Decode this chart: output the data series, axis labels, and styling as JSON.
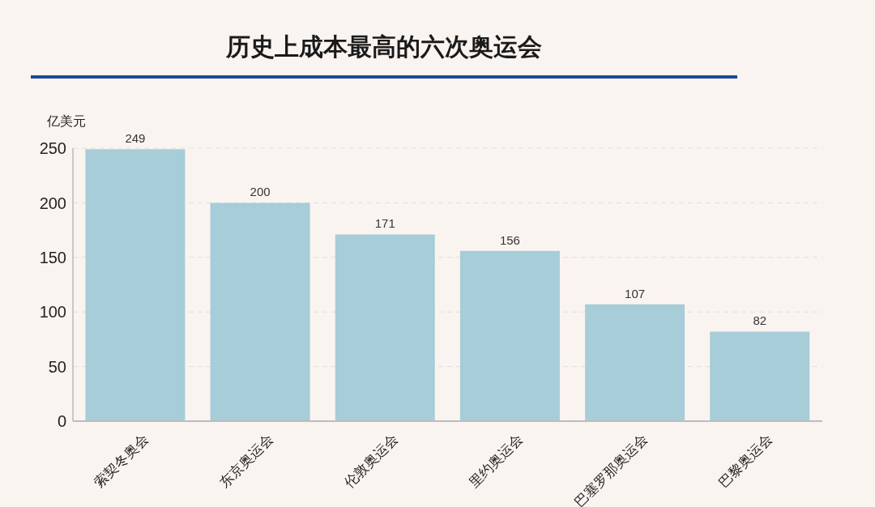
{
  "chart_data": {
    "type": "bar",
    "title": "历史上成本最高的六次奥运会",
    "ylabel": "亿美元",
    "categories": [
      "索契冬奥会",
      "东京奥运会",
      "伦敦奥运会",
      "里约奥运会",
      "巴塞罗那奥运会",
      "巴黎奥运会"
    ],
    "values": [
      249,
      200,
      171,
      156,
      107,
      82
    ],
    "color": "#a6cdd8",
    "ylim": [
      0,
      250
    ],
    "yticks": [
      0,
      50,
      100,
      150,
      200,
      250
    ],
    "grid": "y",
    "data_labels": true
  }
}
